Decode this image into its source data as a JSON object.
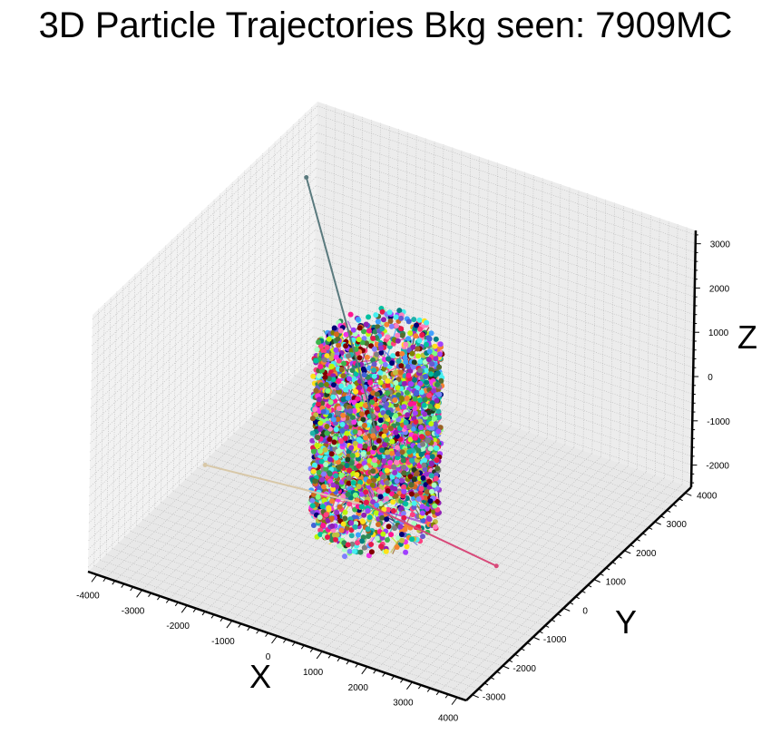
{
  "chart_data": {
    "type": "scatter3d",
    "title": "3D Particle Trajectories Bkg seen: 7909MC",
    "xlabel": "X",
    "ylabel": "Y",
    "zlabel": "Z",
    "xlim": [
      -4200,
      4200
    ],
    "ylim": [
      -3200,
      4200
    ],
    "zlim": [
      -2500,
      3300
    ],
    "x_ticks": [
      -4000,
      -3000,
      -2000,
      -1000,
      0,
      1000,
      2000,
      3000,
      4000
    ],
    "y_ticks": [
      -3000,
      -2000,
      -1000,
      0,
      1000,
      2000,
      3000,
      4000
    ],
    "z_ticks": [
      -2000,
      -1000,
      0,
      1000,
      2000,
      3000
    ],
    "grid": true,
    "legend": "none",
    "background_events": 7909,
    "detector_cylinder": {
      "radius": 1200,
      "z_min": -2000,
      "z_max": 2000
    },
    "outlier_trajectories": [
      {
        "color": "#5a7a7e",
        "from": [
          0,
          0,
          0
        ],
        "to": [
          -2700,
          1600,
          3800
        ]
      },
      {
        "color": "#d84a7a",
        "from": [
          0,
          0,
          -1700
        ],
        "to": [
          2900,
          -300,
          -1800
        ]
      },
      {
        "color": "#d8c8a8",
        "from": [
          -300,
          0,
          -1700
        ],
        "to": [
          -3900,
          200,
          -2200
        ]
      }
    ]
  }
}
